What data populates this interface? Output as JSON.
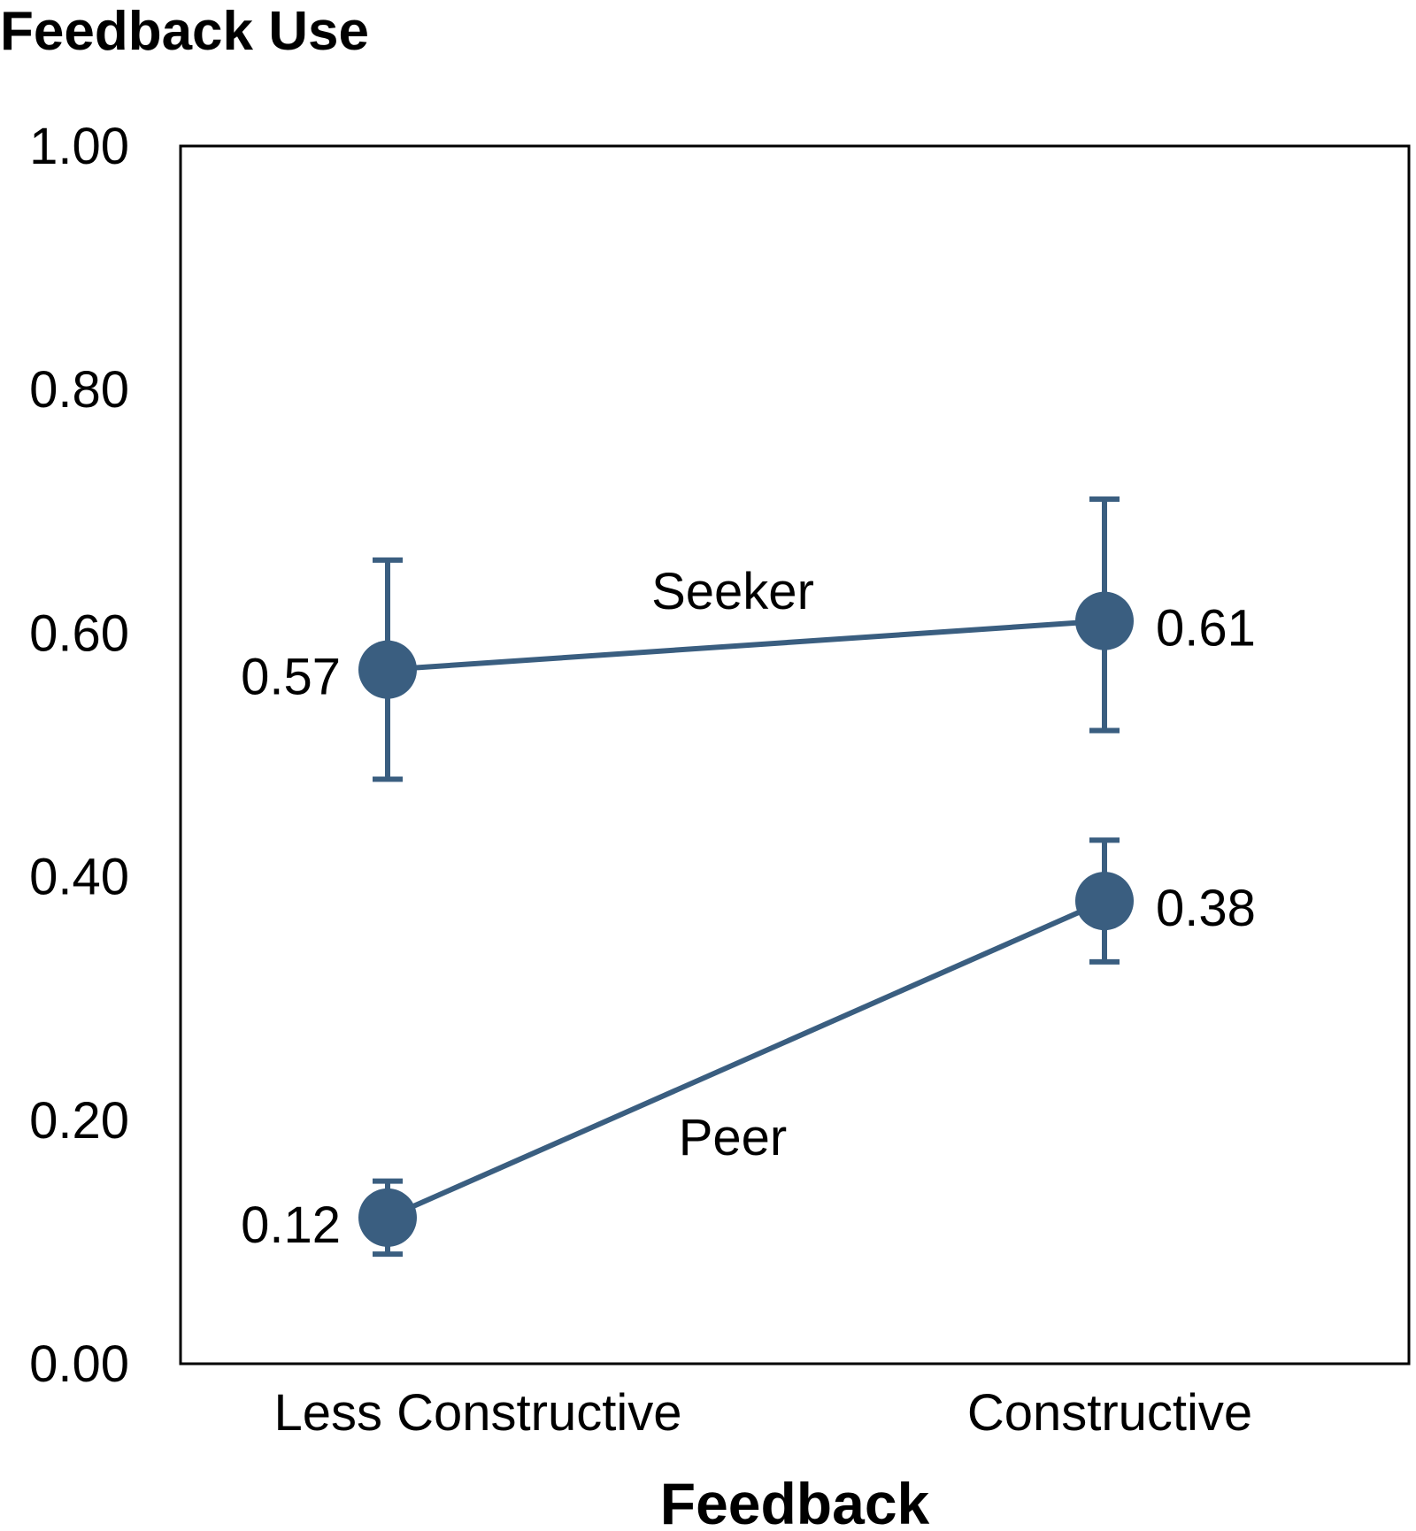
{
  "chart_data": {
    "type": "line",
    "ylabel": "Feedback Use",
    "xlabel": "Feedback",
    "categories": [
      "Less Constructive",
      "Constructive"
    ],
    "ylim": [
      0,
      1
    ],
    "yticks": [
      "0.00",
      "0.20",
      "0.40",
      "0.60",
      "0.80",
      "1.00"
    ],
    "series": [
      {
        "name": "Seeker",
        "values": [
          0.57,
          0.61
        ],
        "labels": [
          "0.57",
          "0.61"
        ],
        "error_low": [
          0.48,
          0.52
        ],
        "error_high": [
          0.66,
          0.71
        ]
      },
      {
        "name": "Peer",
        "values": [
          0.12,
          0.38
        ],
        "labels": [
          "0.12",
          "0.38"
        ],
        "error_low": [
          0.09,
          0.33
        ],
        "error_high": [
          0.15,
          0.43
        ]
      }
    ],
    "color": "#3a5e80"
  }
}
